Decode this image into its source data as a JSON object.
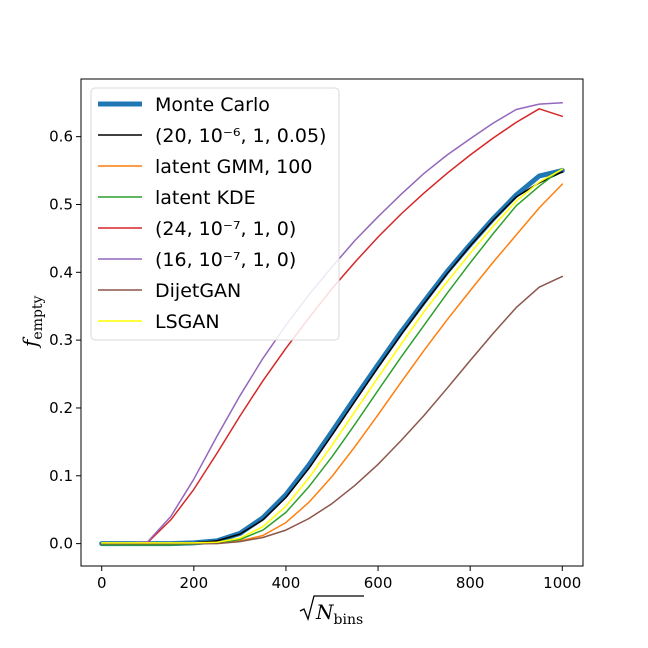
{
  "chart_data": {
    "type": "line",
    "title": "",
    "xlabel": "√N_bins",
    "xlabel_main": "N",
    "xlabel_sub": "bins",
    "ylabel": "f_empty",
    "ylabel_main": "f",
    "ylabel_sub": "empty",
    "xlim": [
      -45,
      1045
    ],
    "ylim": [
      -0.033,
      0.685
    ],
    "xticks": [
      0,
      200,
      400,
      600,
      800,
      1000
    ],
    "xtick_labels": [
      "0",
      "200",
      "400",
      "600",
      "800",
      "1000"
    ],
    "yticks": [
      0.0,
      0.1,
      0.2,
      0.3,
      0.4,
      0.5,
      0.6
    ],
    "ytick_labels": [
      "0.0",
      "0.1",
      "0.2",
      "0.3",
      "0.4",
      "0.5",
      "0.6"
    ],
    "grid": false,
    "legend_position": "top-left",
    "x": [
      0,
      50,
      100,
      150,
      200,
      250,
      300,
      350,
      400,
      450,
      500,
      550,
      600,
      650,
      700,
      750,
      800,
      850,
      900,
      950,
      1000
    ],
    "series": [
      {
        "name": "Monte Carlo",
        "legend": "Monte Carlo",
        "color": "#1f77b4",
        "width": 5,
        "values": [
          0.0,
          0.0,
          0.0,
          0.0,
          0.001,
          0.004,
          0.015,
          0.038,
          0.072,
          0.116,
          0.165,
          0.215,
          0.264,
          0.312,
          0.357,
          0.401,
          0.441,
          0.479,
          0.514,
          0.542,
          0.55
        ]
      },
      {
        "name": "(20, 10^-6, 1, 0.05)",
        "legend": "(20, 10⁻⁶, 1, 0.05)",
        "color": "#000000",
        "width": 1.5,
        "values": [
          0.0,
          0.0,
          0.0,
          0.0,
          0.001,
          0.004,
          0.014,
          0.035,
          0.068,
          0.111,
          0.16,
          0.21,
          0.26,
          0.308,
          0.354,
          0.398,
          0.439,
          0.477,
          0.511,
          0.532,
          0.548
        ]
      },
      {
        "name": "latent GMM, 100",
        "legend": "latent GMM, 100",
        "color": "#ff7f0e",
        "width": 1.5,
        "values": [
          0.0,
          0.0,
          0.0,
          0.0,
          0.0,
          0.001,
          0.004,
          0.012,
          0.031,
          0.061,
          0.099,
          0.143,
          0.19,
          0.238,
          0.285,
          0.33,
          0.373,
          0.415,
          0.455,
          0.495,
          0.53
        ]
      },
      {
        "name": "latent KDE",
        "legend": "latent KDE",
        "color": "#2ca02c",
        "width": 1.5,
        "values": [
          -0.002,
          -0.002,
          -0.002,
          -0.002,
          -0.001,
          0.001,
          0.006,
          0.02,
          0.046,
          0.084,
          0.128,
          0.176,
          0.226,
          0.275,
          0.322,
          0.369,
          0.414,
          0.457,
          0.498,
          0.527,
          0.553
        ]
      },
      {
        "name": "(24, 10^-7, 1, 0)",
        "legend": "(24, 10⁻⁷, 1, 0)",
        "color": "#d62728",
        "width": 1.5,
        "values": [
          0.0,
          0.0,
          0.002,
          0.035,
          0.08,
          0.133,
          0.188,
          0.24,
          0.288,
          0.333,
          0.376,
          0.415,
          0.452,
          0.486,
          0.517,
          0.546,
          0.573,
          0.598,
          0.621,
          0.641,
          0.63
        ]
      },
      {
        "name": "(16, 10^-7, 1, 0)",
        "legend": "(16, 10⁻⁷, 1, 0)",
        "color": "#9467bd",
        "width": 1.5,
        "values": [
          0.0,
          0.0,
          0.003,
          0.04,
          0.095,
          0.158,
          0.218,
          0.273,
          0.322,
          0.367,
          0.408,
          0.447,
          0.482,
          0.515,
          0.546,
          0.573,
          0.597,
          0.62,
          0.64,
          0.648,
          0.65
        ]
      },
      {
        "name": "DijetGAN",
        "legend": "DijetGAN",
        "color": "#8c564b",
        "width": 1.5,
        "values": [
          0.0,
          0.0,
          0.0,
          0.0,
          0.0,
          0.0,
          0.003,
          0.009,
          0.02,
          0.037,
          0.059,
          0.086,
          0.117,
          0.152,
          0.189,
          0.229,
          0.27,
          0.31,
          0.348,
          0.378,
          0.394
        ]
      },
      {
        "name": "LSGAN",
        "legend": "LSGAN",
        "color": "#ffff00",
        "width": 1.5,
        "values": [
          0.001,
          0.001,
          0.001,
          0.001,
          0.001,
          0.002,
          0.008,
          0.025,
          0.055,
          0.097,
          0.145,
          0.195,
          0.245,
          0.294,
          0.342,
          0.386,
          0.428,
          0.468,
          0.505,
          0.533,
          0.552
        ]
      }
    ]
  }
}
